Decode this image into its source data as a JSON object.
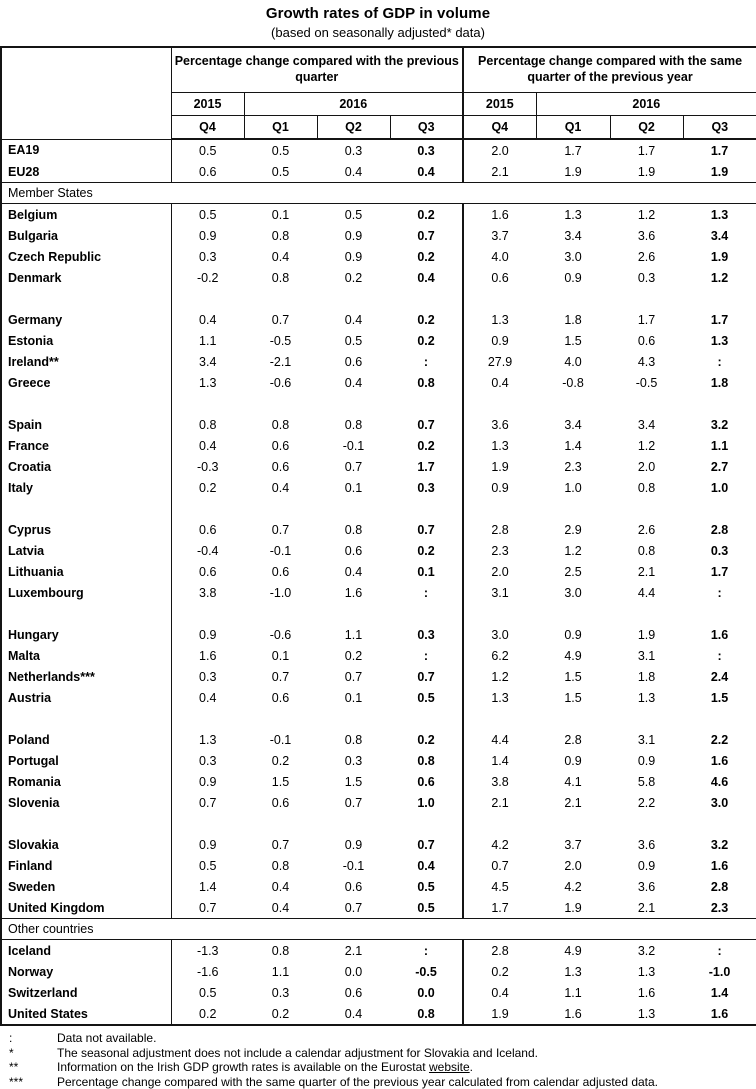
{
  "title": "Growth rates of GDP in volume",
  "subtitle": "(based on seasonally adjusted* data)",
  "colors": {
    "text": "#000000",
    "background": "#ffffff",
    "border": "#141414"
  },
  "table": {
    "header": {
      "group1": "Percentage change compared with the previous quarter",
      "group2": "Percentage change compared with the same quarter of the previous year",
      "years": [
        "2015",
        "2016",
        "2015",
        "2016"
      ],
      "quarters": [
        "Q4",
        "Q1",
        "Q2",
        "Q3",
        "Q4",
        "Q1",
        "Q2",
        "Q3"
      ]
    },
    "rows": [
      {
        "type": "data",
        "label": "EA19",
        "values": [
          "0.5",
          "0.5",
          "0.3",
          "0.3",
          "2.0",
          "1.7",
          "1.7",
          "1.7"
        ]
      },
      {
        "type": "data",
        "label": "EU28",
        "cls": "block-end",
        "values": [
          "0.6",
          "0.5",
          "0.4",
          "0.4",
          "2.1",
          "1.9",
          "1.9",
          "1.9"
        ]
      },
      {
        "type": "section",
        "label": "Member States"
      },
      {
        "type": "data",
        "label": "Belgium",
        "values": [
          "0.5",
          "0.1",
          "0.5",
          "0.2",
          "1.6",
          "1.3",
          "1.2",
          "1.3"
        ]
      },
      {
        "type": "data",
        "label": "Bulgaria",
        "values": [
          "0.9",
          "0.8",
          "0.9",
          "0.7",
          "3.7",
          "3.4",
          "3.6",
          "3.4"
        ]
      },
      {
        "type": "data",
        "label": "Czech Republic",
        "values": [
          "0.3",
          "0.4",
          "0.9",
          "0.2",
          "4.0",
          "3.0",
          "2.6",
          "1.9"
        ]
      },
      {
        "type": "data",
        "label": "Denmark",
        "values": [
          "-0.2",
          "0.8",
          "0.2",
          "0.4",
          "0.6",
          "0.9",
          "0.3",
          "1.2"
        ]
      },
      {
        "type": "spacer"
      },
      {
        "type": "data",
        "label": "Germany",
        "values": [
          "0.4",
          "0.7",
          "0.4",
          "0.2",
          "1.3",
          "1.8",
          "1.7",
          "1.7"
        ]
      },
      {
        "type": "data",
        "label": "Estonia",
        "values": [
          "1.1",
          "-0.5",
          "0.5",
          "0.2",
          "0.9",
          "1.5",
          "0.6",
          "1.3"
        ]
      },
      {
        "type": "data",
        "label": "Ireland**",
        "values": [
          "3.4",
          "-2.1",
          "0.6",
          ":",
          "27.9",
          "4.0",
          "4.3",
          ":"
        ]
      },
      {
        "type": "data",
        "label": "Greece",
        "values": [
          "1.3",
          "-0.6",
          "0.4",
          "0.8",
          "0.4",
          "-0.8",
          "-0.5",
          "1.8"
        ]
      },
      {
        "type": "spacer"
      },
      {
        "type": "data",
        "label": "Spain",
        "values": [
          "0.8",
          "0.8",
          "0.8",
          "0.7",
          "3.6",
          "3.4",
          "3.4",
          "3.2"
        ]
      },
      {
        "type": "data",
        "label": "France",
        "values": [
          "0.4",
          "0.6",
          "-0.1",
          "0.2",
          "1.3",
          "1.4",
          "1.2",
          "1.1"
        ]
      },
      {
        "type": "data",
        "label": "Croatia",
        "values": [
          "-0.3",
          "0.6",
          "0.7",
          "1.7",
          "1.9",
          "2.3",
          "2.0",
          "2.7"
        ]
      },
      {
        "type": "data",
        "label": "Italy",
        "values": [
          "0.2",
          "0.4",
          "0.1",
          "0.3",
          "0.9",
          "1.0",
          "0.8",
          "1.0"
        ]
      },
      {
        "type": "spacer"
      },
      {
        "type": "data",
        "label": "Cyprus",
        "values": [
          "0.6",
          "0.7",
          "0.8",
          "0.7",
          "2.8",
          "2.9",
          "2.6",
          "2.8"
        ]
      },
      {
        "type": "data",
        "label": "Latvia",
        "values": [
          "-0.4",
          "-0.1",
          "0.6",
          "0.2",
          "2.3",
          "1.2",
          "0.8",
          "0.3"
        ]
      },
      {
        "type": "data",
        "label": "Lithuania",
        "values": [
          "0.6",
          "0.6",
          "0.4",
          "0.1",
          "2.0",
          "2.5",
          "2.1",
          "1.7"
        ]
      },
      {
        "type": "data",
        "label": "Luxembourg",
        "values": [
          "3.8",
          "-1.0",
          "1.6",
          ":",
          "3.1",
          "3.0",
          "4.4",
          ":"
        ]
      },
      {
        "type": "spacer"
      },
      {
        "type": "data",
        "label": "Hungary",
        "values": [
          "0.9",
          "-0.6",
          "1.1",
          "0.3",
          "3.0",
          "0.9",
          "1.9",
          "1.6"
        ]
      },
      {
        "type": "data",
        "label": "Malta",
        "values": [
          "1.6",
          "0.1",
          "0.2",
          ":",
          "6.2",
          "4.9",
          "3.1",
          ":"
        ]
      },
      {
        "type": "data",
        "label": "Netherlands***",
        "values": [
          "0.3",
          "0.7",
          "0.7",
          "0.7",
          "1.2",
          "1.5",
          "1.8",
          "2.4"
        ]
      },
      {
        "type": "data",
        "label": "Austria",
        "values": [
          "0.4",
          "0.6",
          "0.1",
          "0.5",
          "1.3",
          "1.5",
          "1.3",
          "1.5"
        ]
      },
      {
        "type": "spacer"
      },
      {
        "type": "data",
        "label": "Poland",
        "values": [
          "1.3",
          "-0.1",
          "0.8",
          "0.2",
          "4.4",
          "2.8",
          "3.1",
          "2.2"
        ]
      },
      {
        "type": "data",
        "label": "Portugal",
        "values": [
          "0.3",
          "0.2",
          "0.3",
          "0.8",
          "1.4",
          "0.9",
          "0.9",
          "1.6"
        ]
      },
      {
        "type": "data",
        "label": "Romania",
        "values": [
          "0.9",
          "1.5",
          "1.5",
          "0.6",
          "3.8",
          "4.1",
          "5.8",
          "4.6"
        ]
      },
      {
        "type": "data",
        "label": "Slovenia",
        "values": [
          "0.7",
          "0.6",
          "0.7",
          "1.0",
          "2.1",
          "2.1",
          "2.2",
          "3.0"
        ]
      },
      {
        "type": "spacer"
      },
      {
        "type": "data",
        "label": "Slovakia",
        "values": [
          "0.9",
          "0.7",
          "0.9",
          "0.7",
          "4.2",
          "3.7",
          "3.6",
          "3.2"
        ]
      },
      {
        "type": "data",
        "label": "Finland",
        "values": [
          "0.5",
          "0.8",
          "-0.1",
          "0.4",
          "0.7",
          "2.0",
          "0.9",
          "1.6"
        ]
      },
      {
        "type": "data",
        "label": "Sweden",
        "values": [
          "1.4",
          "0.4",
          "0.6",
          "0.5",
          "4.5",
          "4.2",
          "3.6",
          "2.8"
        ]
      },
      {
        "type": "data",
        "label": "United Kingdom",
        "cls": "block-end",
        "values": [
          "0.7",
          "0.4",
          "0.7",
          "0.5",
          "1.7",
          "1.9",
          "2.1",
          "2.3"
        ]
      },
      {
        "type": "section",
        "label": "Other countries"
      },
      {
        "type": "data",
        "label": "Iceland",
        "values": [
          "-1.3",
          "0.8",
          "2.1",
          ":",
          "2.8",
          "4.9",
          "3.2",
          ":"
        ]
      },
      {
        "type": "data",
        "label": "Norway",
        "values": [
          "-1.6",
          "1.1",
          "0.0",
          "-0.5",
          "0.2",
          "1.3",
          "1.3",
          "-1.0"
        ]
      },
      {
        "type": "data",
        "label": "Switzerland",
        "values": [
          "0.5",
          "0.3",
          "0.6",
          "0.0",
          "0.4",
          "1.1",
          "1.6",
          "1.4"
        ]
      },
      {
        "type": "data",
        "label": "United States",
        "values": [
          "0.2",
          "0.2",
          "0.4",
          "0.8",
          "1.9",
          "1.6",
          "1.3",
          "1.6"
        ]
      }
    ]
  },
  "footnotes": [
    {
      "symbol": ":",
      "text": "Data not available."
    },
    {
      "symbol": "*",
      "text": "The seasonal adjustment does not include a calendar adjustment for Slovakia and Iceland."
    },
    {
      "symbol": "**",
      "text": "Information on the Irish GDP growth rates is available on the Eurostat ",
      "link": "website",
      "after": "."
    },
    {
      "symbol": "***",
      "text": "Percentage change compared with the same quarter of the previous year calculated from calendar adjusted data."
    }
  ]
}
